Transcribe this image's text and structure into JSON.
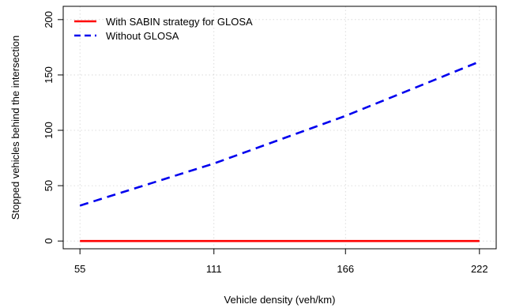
{
  "chart_data": {
    "type": "line",
    "xlabel": "Vehicle density (veh/km)",
    "ylabel": "Stopped vehicles behind the intersection",
    "x_ticks": [
      55,
      111,
      166,
      222
    ],
    "y_ticks": [
      0,
      50,
      100,
      150,
      200
    ],
    "xlim": [
      55,
      222
    ],
    "ylim": [
      0,
      200
    ],
    "grid": true,
    "legend_position": "top-left",
    "series": [
      {
        "name": "With SABIN strategy for GLOSA",
        "color": "#ff0000",
        "style": "solid",
        "x": [
          55,
          111,
          166,
          222
        ],
        "y": [
          0,
          0,
          0,
          0
        ]
      },
      {
        "name": "Without GLOSA",
        "color": "#0000ee",
        "style": "dashed",
        "x": [
          55,
          111,
          166,
          222
        ],
        "y": [
          32,
          70,
          113,
          162
        ]
      }
    ]
  }
}
